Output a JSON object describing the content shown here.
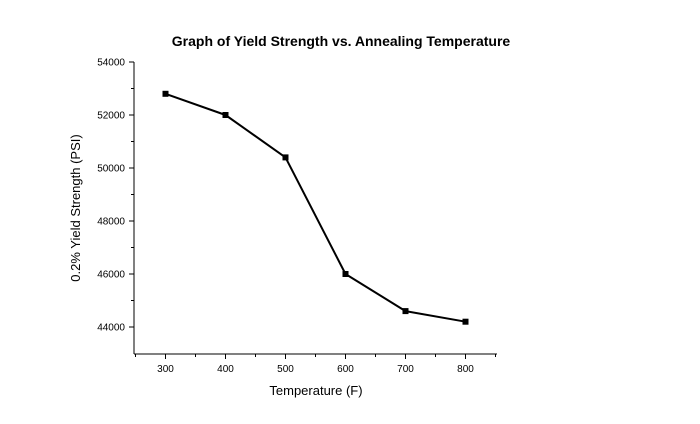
{
  "chart_data": {
    "type": "line",
    "title": "Graph of Yield Strength vs. Annealing Temperature",
    "xlabel": "Temperature (F)",
    "ylabel": "0.2% Yield Strength (PSI)",
    "xlim": [
      250,
      850
    ],
    "ylim": [
      43500,
      54000
    ],
    "x_ticks": [
      "300",
      "400",
      "500",
      "600",
      "700",
      "800"
    ],
    "y_ticks": [
      "44000",
      "46000",
      "48000",
      "50000",
      "52000",
      "54000"
    ],
    "x": [
      300,
      400,
      500,
      600,
      700,
      800
    ],
    "series": [
      {
        "values": [
          52800,
          52000,
          50400,
          46000,
          44600,
          44200
        ]
      }
    ],
    "grid": false,
    "legend": "none"
  }
}
